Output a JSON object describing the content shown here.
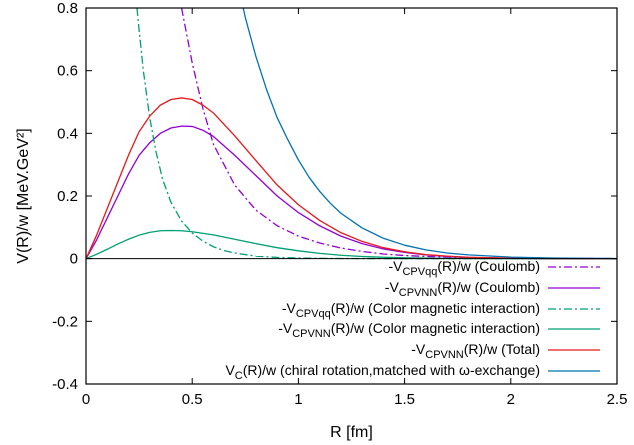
{
  "chart_data": {
    "type": "line",
    "xlabel": "R [fm]",
    "ylabel": "V(R)/w [MeV.GeV²]",
    "xlim": [
      0,
      2.5
    ],
    "ylim": [
      -0.4,
      0.8
    ],
    "x_ticks": [
      "0",
      "0.5",
      "1",
      "1.5",
      "2",
      "2.5"
    ],
    "y_ticks": [
      "-0.4",
      "-0.2",
      "0",
      "0.2",
      "0.4",
      "0.6",
      "0.8"
    ],
    "grid": false,
    "zero_line": true,
    "legend_position": "bottom-right",
    "series": [
      {
        "name": "-V_CPVqq(R)/w (Coulomb)",
        "legend_prefix": "-V",
        "legend_sub": "CPVqq",
        "legend_suffix": "(R)/w (Coulomb)",
        "color": "#9400d3",
        "dash": "dashdot",
        "points": [
          [
            0.45,
            0.8
          ],
          [
            0.5,
            0.625
          ],
          [
            0.55,
            0.48
          ],
          [
            0.6,
            0.365
          ],
          [
            0.7,
            0.235
          ],
          [
            0.8,
            0.155
          ],
          [
            0.9,
            0.105
          ],
          [
            1.0,
            0.072
          ],
          [
            1.1,
            0.05
          ],
          [
            1.2,
            0.034
          ],
          [
            1.3,
            0.023
          ],
          [
            1.4,
            0.015
          ],
          [
            1.5,
            0.01
          ],
          [
            1.6,
            0.007
          ],
          [
            1.8,
            0.003
          ],
          [
            2.0,
            0.0015
          ],
          [
            2.2,
            0.0007
          ],
          [
            2.5,
            0.0002
          ]
        ]
      },
      {
        "name": "-V_CPVNN(R)/w (Coulomb)",
        "legend_prefix": "-V",
        "legend_sub": "CPVNN",
        "legend_suffix": "(R)/w (Coulomb)",
        "color": "#9400d3",
        "dash": "solid",
        "points": [
          [
            0,
            0
          ],
          [
            0.05,
            0.06
          ],
          [
            0.1,
            0.13
          ],
          [
            0.15,
            0.2
          ],
          [
            0.2,
            0.27
          ],
          [
            0.25,
            0.33
          ],
          [
            0.3,
            0.37
          ],
          [
            0.35,
            0.4
          ],
          [
            0.4,
            0.417
          ],
          [
            0.45,
            0.423
          ],
          [
            0.5,
            0.422
          ],
          [
            0.55,
            0.41
          ],
          [
            0.6,
            0.39
          ],
          [
            0.7,
            0.33
          ],
          [
            0.8,
            0.265
          ],
          [
            0.9,
            0.2
          ],
          [
            1.0,
            0.147
          ],
          [
            1.1,
            0.105
          ],
          [
            1.2,
            0.072
          ],
          [
            1.3,
            0.048
          ],
          [
            1.4,
            0.031
          ],
          [
            1.5,
            0.02
          ],
          [
            1.6,
            0.012
          ],
          [
            1.7,
            0.007
          ],
          [
            1.8,
            0.004
          ],
          [
            2.0,
            0.0012
          ],
          [
            2.2,
            0.0003
          ],
          [
            2.5,
            0
          ]
        ]
      },
      {
        "name": "-V_CPVqq(R)/w (Color magnetic interaction)",
        "legend_prefix": "-V",
        "legend_sub": "CPVqq",
        "legend_suffix": "(R)/w (Color magnetic interaction)",
        "color": "#009e73",
        "dash": "dashdot",
        "points": [
          [
            0.24,
            0.8
          ],
          [
            0.25,
            0.73
          ],
          [
            0.27,
            0.6
          ],
          [
            0.3,
            0.45
          ],
          [
            0.33,
            0.34
          ],
          [
            0.36,
            0.255
          ],
          [
            0.4,
            0.18
          ],
          [
            0.45,
            0.12
          ],
          [
            0.5,
            0.082
          ],
          [
            0.55,
            0.056
          ],
          [
            0.6,
            0.038
          ],
          [
            0.65,
            0.026
          ],
          [
            0.7,
            0.018
          ],
          [
            0.8,
            0.008
          ],
          [
            0.9,
            0.004
          ],
          [
            1.0,
            0.002
          ],
          [
            1.2,
            0.0005
          ],
          [
            1.5,
            0.0001
          ],
          [
            2.5,
            0
          ]
        ]
      },
      {
        "name": "-V_CPVNN(R)/w (Color magnetic interaction)",
        "legend_prefix": "-V",
        "legend_sub": "CPVNN",
        "legend_suffix": "(R)/w (Color magnetic interaction)",
        "color": "#009e73",
        "dash": "solid",
        "points": [
          [
            0,
            0
          ],
          [
            0.05,
            0.014
          ],
          [
            0.1,
            0.03
          ],
          [
            0.15,
            0.047
          ],
          [
            0.2,
            0.062
          ],
          [
            0.25,
            0.075
          ],
          [
            0.3,
            0.084
          ],
          [
            0.35,
            0.089
          ],
          [
            0.4,
            0.09
          ],
          [
            0.45,
            0.089
          ],
          [
            0.5,
            0.086
          ],
          [
            0.6,
            0.076
          ],
          [
            0.7,
            0.062
          ],
          [
            0.8,
            0.048
          ],
          [
            0.9,
            0.035
          ],
          [
            1.0,
            0.025
          ],
          [
            1.1,
            0.017
          ],
          [
            1.2,
            0.011
          ],
          [
            1.3,
            0.007
          ],
          [
            1.4,
            0.0045
          ],
          [
            1.5,
            0.003
          ],
          [
            1.7,
            0.001
          ],
          [
            2.0,
            0.0002
          ],
          [
            2.5,
            0
          ]
        ]
      },
      {
        "name": "-V_CPVNN(R)/w (Total)",
        "legend_prefix": "-V",
        "legend_sub": "CPVNN",
        "legend_suffix": "(R)/w (Total)",
        "color": "#e31a1c",
        "dash": "solid",
        "points": [
          [
            0,
            0
          ],
          [
            0.05,
            0.075
          ],
          [
            0.1,
            0.16
          ],
          [
            0.15,
            0.245
          ],
          [
            0.2,
            0.33
          ],
          [
            0.25,
            0.405
          ],
          [
            0.3,
            0.455
          ],
          [
            0.35,
            0.49
          ],
          [
            0.4,
            0.508
          ],
          [
            0.45,
            0.513
          ],
          [
            0.5,
            0.508
          ],
          [
            0.55,
            0.49
          ],
          [
            0.6,
            0.465
          ],
          [
            0.7,
            0.392
          ],
          [
            0.8,
            0.313
          ],
          [
            0.9,
            0.235
          ],
          [
            1.0,
            0.172
          ],
          [
            1.1,
            0.122
          ],
          [
            1.2,
            0.083
          ],
          [
            1.3,
            0.055
          ],
          [
            1.4,
            0.035
          ],
          [
            1.5,
            0.022
          ],
          [
            1.6,
            0.013
          ],
          [
            1.7,
            0.008
          ],
          [
            1.8,
            0.0045
          ],
          [
            2.0,
            0.0014
          ],
          [
            2.2,
            0.0004
          ],
          [
            2.5,
            0
          ]
        ]
      },
      {
        "name": "V_C(R)/w (chiral rotation,matched with ω-exchange)",
        "legend_prefix": "V",
        "legend_sub": "C",
        "legend_suffix": "(R)/w (chiral rotation,matched with ω-exchange)",
        "color": "#0072b2",
        "dash": "solid",
        "points": [
          [
            0.74,
            0.8
          ],
          [
            0.75,
            0.77
          ],
          [
            0.8,
            0.645
          ],
          [
            0.85,
            0.54
          ],
          [
            0.9,
            0.45
          ],
          [
            0.95,
            0.38
          ],
          [
            1.0,
            0.315
          ],
          [
            1.05,
            0.26
          ],
          [
            1.1,
            0.215
          ],
          [
            1.15,
            0.177
          ],
          [
            1.2,
            0.145
          ],
          [
            1.3,
            0.098
          ],
          [
            1.4,
            0.065
          ],
          [
            1.5,
            0.043
          ],
          [
            1.6,
            0.028
          ],
          [
            1.7,
            0.018
          ],
          [
            1.8,
            0.012
          ],
          [
            2.0,
            0.005
          ],
          [
            2.2,
            0.002
          ],
          [
            2.5,
            0.0004
          ]
        ]
      }
    ]
  }
}
